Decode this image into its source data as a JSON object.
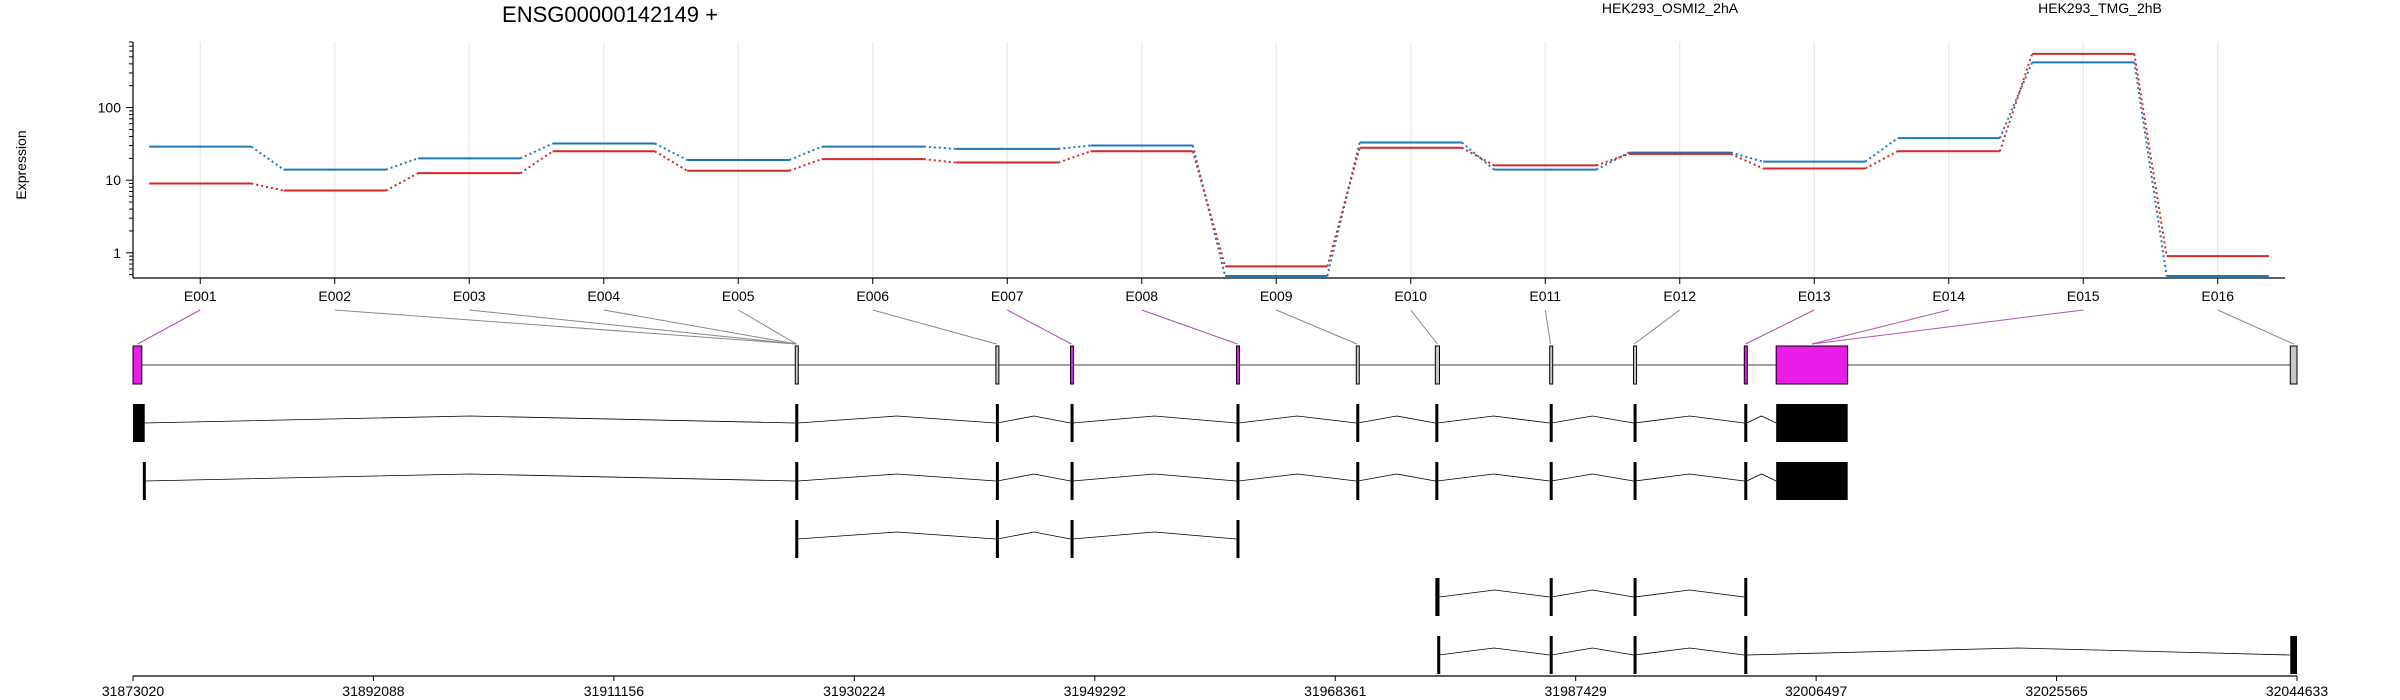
{
  "title": "ENSG00000142149 +",
  "chart_data": {
    "type": "line",
    "title": "ENSG00000142149 +",
    "ylabel": "Expression",
    "xlabel": "",
    "yscale": "log",
    "ylim": [
      0.45,
      800
    ],
    "yticks": [
      1,
      10,
      100
    ],
    "grid": "vertical lines at each exon",
    "legend_placement": "top",
    "categories": [
      "E001",
      "E002",
      "E003",
      "E004",
      "E005",
      "E006",
      "E007",
      "E008",
      "E009",
      "E010",
      "E011",
      "E012",
      "E013",
      "E014",
      "E015",
      "E016"
    ],
    "series": [
      {
        "name": "HEK293_OSMI2_2hA",
        "color": "#d62728",
        "values": [
          9,
          7.2,
          12.5,
          25,
          13.5,
          19.5,
          17.5,
          25,
          0.65,
          28,
          16,
          23,
          14.5,
          25,
          550,
          0.9
        ]
      },
      {
        "name": "HEK293_TMG_2hB",
        "color": "#1f77b4",
        "values": [
          29,
          14,
          20,
          32,
          19,
          29,
          27,
          30,
          0.48,
          33,
          14,
          24,
          18,
          38,
          420,
          0.48
        ]
      }
    ]
  },
  "gene_model": {
    "axis_ticks": [
      "31873020",
      "31892088",
      "31911156",
      "31930224",
      "31949292",
      "31968361",
      "31987429",
      "32006497",
      "32025565",
      "32044633"
    ],
    "genome_range": [
      31873020,
      32044633
    ],
    "highlight_color": "#e81ee8",
    "exons": [
      {
        "id": "E001",
        "start": 31873020,
        "end": 31873720,
        "highlight": true
      },
      {
        "id": "E002",
        "start": 31925540,
        "end": 31925720,
        "highlight": false
      },
      {
        "id": "E003",
        "start": 31941450,
        "end": 31941560,
        "highlight": false
      },
      {
        "id": "E004",
        "start": 31947370,
        "end": 31947520,
        "highlight": true
      },
      {
        "id": "E005",
        "start": 31960530,
        "end": 31960680,
        "highlight": true
      },
      {
        "id": "E006",
        "start": 31970030,
        "end": 31970150,
        "highlight": false
      },
      {
        "id": "E007",
        "start": 31976300,
        "end": 31976630,
        "highlight": false
      },
      {
        "id": "E008",
        "start": 31985370,
        "end": 31985500,
        "highlight": false
      },
      {
        "id": "E009",
        "start": 31992020,
        "end": 31992120,
        "highlight": false
      },
      {
        "id": "E010",
        "start": 32000800,
        "end": 32001000,
        "highlight": true
      },
      {
        "id": "E011",
        "start": 32003330,
        "end": 32009000,
        "highlight": true
      },
      {
        "id": "E012",
        "start": 32044100,
        "end": 32044633,
        "highlight": false
      }
    ],
    "plot_link_exon": [
      0,
      1,
      1,
      1,
      1,
      2,
      3,
      4,
      5,
      6,
      7,
      8,
      9,
      10,
      10,
      11
    ],
    "transcripts": [
      {
        "exons": [
          [
            31873020,
            31873950
          ],
          [
            31925540,
            31925720
          ],
          [
            31941450,
            31941560
          ],
          [
            31947370,
            31947520
          ],
          [
            31960530,
            31960680
          ],
          [
            31970030,
            31970150
          ],
          [
            31976300,
            31976450
          ],
          [
            31985370,
            31985500
          ],
          [
            31992020,
            31992120
          ],
          [
            32000800,
            32001000
          ],
          [
            32003330,
            32009000
          ]
        ]
      },
      {
        "exons": [
          [
            31873800,
            31873900
          ],
          [
            31925540,
            31925720
          ],
          [
            31941450,
            31941560
          ],
          [
            31947370,
            31947520
          ],
          [
            31960530,
            31960680
          ],
          [
            31970030,
            31970150
          ],
          [
            31976300,
            31976450
          ],
          [
            31985370,
            31985500
          ],
          [
            31992020,
            31992120
          ],
          [
            32000800,
            32001000
          ],
          [
            32003330,
            32009000
          ]
        ]
      },
      {
        "exons": [
          [
            31925540,
            31925720
          ],
          [
            31941450,
            31941560
          ],
          [
            31947370,
            31947520
          ],
          [
            31960530,
            31960630
          ]
        ]
      },
      {
        "exons": [
          [
            31976300,
            31976630
          ],
          [
            31985370,
            31985500
          ],
          [
            31992020,
            31992120
          ],
          [
            32000800,
            32001000
          ]
        ]
      },
      {
        "exons": [
          [
            31976450,
            31976550
          ],
          [
            31985370,
            31985500
          ],
          [
            31992020,
            31992120
          ],
          [
            32000800,
            32001000
          ],
          [
            32044100,
            32044633
          ]
        ]
      }
    ]
  }
}
